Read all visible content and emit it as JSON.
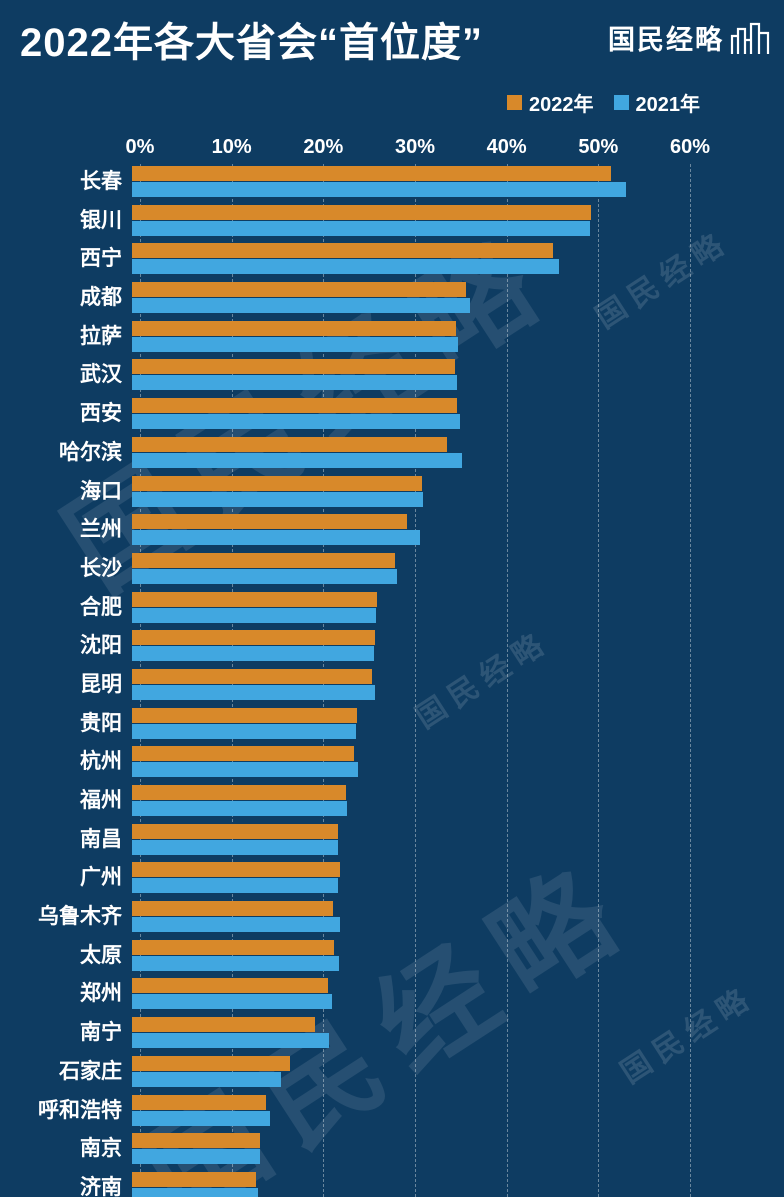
{
  "header": {
    "title": "2022年各大省会“首位度”",
    "logo_text": "国民经略"
  },
  "legend": [
    {
      "label": "2022年",
      "color": "#d8892a"
    },
    {
      "label": "2021年",
      "color": "#41a7e0"
    }
  ],
  "watermark": {
    "text": "国民经略"
  },
  "chart_data": {
    "type": "bar",
    "orientation": "horizontal",
    "title": "2022年各大省会“首位度”",
    "xlabel": "",
    "ylabel": "",
    "x_ticks": [
      "0%",
      "10%",
      "20%",
      "30%",
      "40%",
      "50%",
      "60%"
    ],
    "xlim": [
      0,
      60
    ],
    "grid": "dashed-vertical",
    "legend_position": "top-right",
    "categories": [
      "长春",
      "银川",
      "西宁",
      "成都",
      "拉萨",
      "武汉",
      "西安",
      "哈尔滨",
      "海口",
      "兰州",
      "长沙",
      "合肥",
      "沈阳",
      "昆明",
      "贵阳",
      "杭州",
      "福州",
      "南昌",
      "广州",
      "乌鲁木齐",
      "太原",
      "郑州",
      "南宁",
      "石家庄",
      "呼和浩特",
      "南京",
      "济南"
    ],
    "series": [
      {
        "name": "2022年",
        "color": "#d8892a",
        "values": [
          52.2,
          50.1,
          45.9,
          36.4,
          35.3,
          35.2,
          35.5,
          34.4,
          31.6,
          30.0,
          28.7,
          26.7,
          26.5,
          26.2,
          24.5,
          24.2,
          23.3,
          22.5,
          22.7,
          21.9,
          22.0,
          21.4,
          20.0,
          17.2,
          14.6,
          14.0,
          13.5
        ]
      },
      {
        "name": "2021年",
        "color": "#41a7e0",
        "values": [
          53.9,
          50.0,
          46.6,
          36.9,
          35.6,
          35.4,
          35.8,
          36.0,
          31.7,
          31.4,
          28.9,
          26.6,
          26.4,
          26.5,
          24.4,
          24.6,
          23.4,
          22.5,
          22.5,
          22.7,
          22.6,
          21.8,
          21.5,
          16.2,
          15.0,
          14.0,
          13.7
        ]
      }
    ]
  }
}
